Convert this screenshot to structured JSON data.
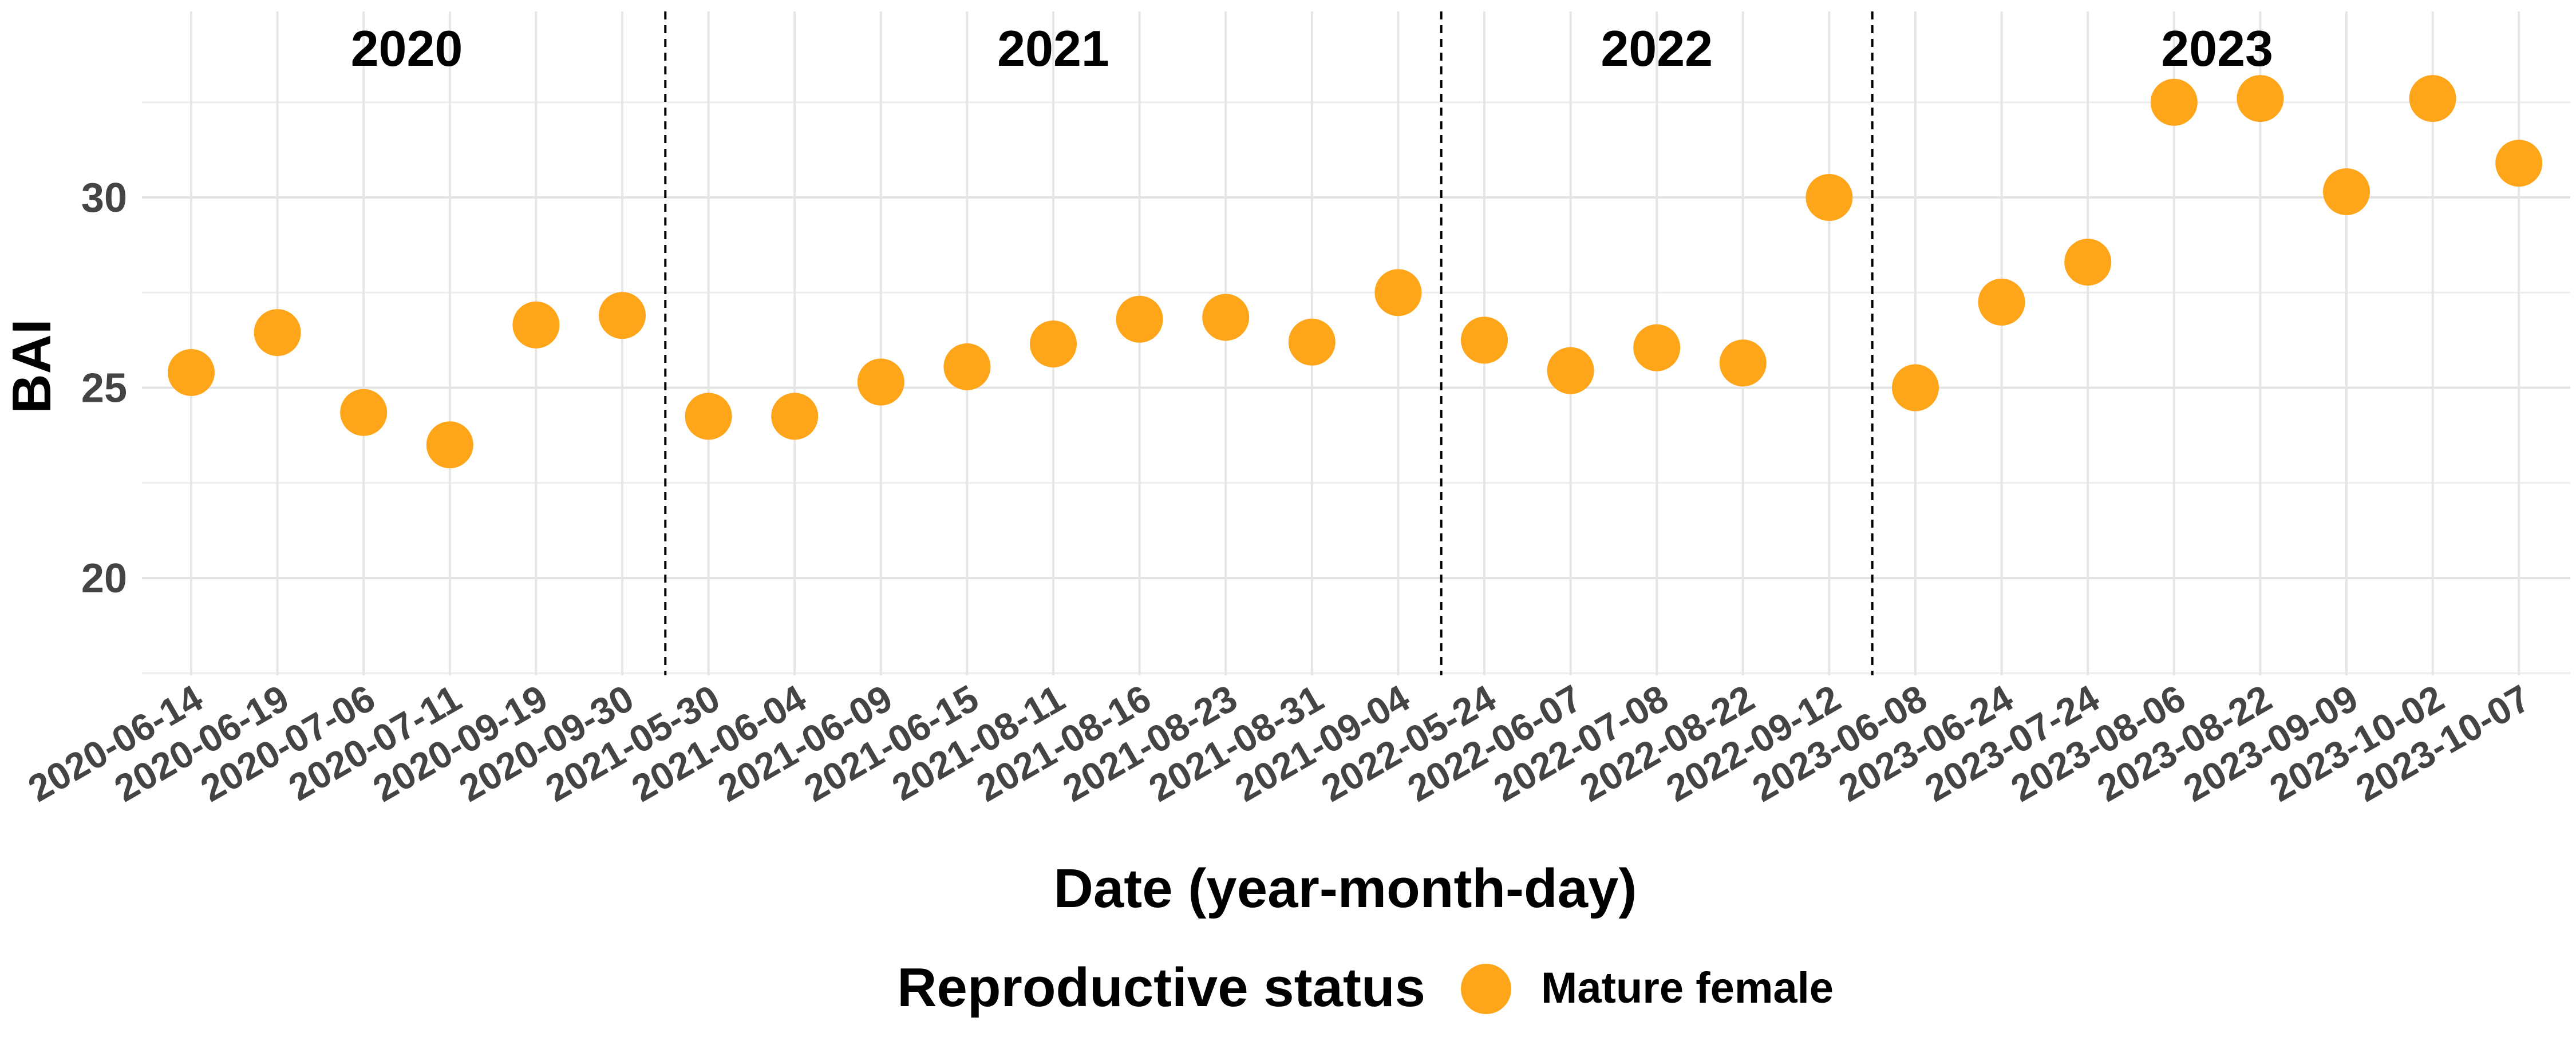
{
  "chart_data": {
    "type": "scatter",
    "xlabel": "Date (year-month-day)",
    "ylabel": "BAI",
    "ylim": [
      17.5,
      34.5
    ],
    "yticks": [
      20,
      25,
      30
    ],
    "grid": true,
    "point_color": "#FFA51A",
    "divider_style": "dashed",
    "legend": {
      "title": "Reproductive status",
      "placement": "bottom",
      "entries": [
        "Mature female"
      ]
    },
    "year_labels": [
      "2020",
      "2021",
      "2022",
      "2023"
    ],
    "year_groups": [
      {
        "label": "2020",
        "count": 6
      },
      {
        "label": "2021",
        "count": 9
      },
      {
        "label": "2022",
        "count": 5
      },
      {
        "label": "2023",
        "count": 8
      }
    ],
    "categories": [
      "2020-06-14",
      "2020-06-19",
      "2020-07-06",
      "2020-07-11",
      "2020-09-19",
      "2020-09-30",
      "2021-05-30",
      "2021-06-04",
      "2021-06-09",
      "2021-06-15",
      "2021-08-11",
      "2021-08-16",
      "2021-08-23",
      "2021-08-31",
      "2021-09-04",
      "2022-05-24",
      "2022-06-07",
      "2022-07-08",
      "2022-08-22",
      "2022-09-12",
      "2023-06-08",
      "2023-06-24",
      "2023-07-24",
      "2023-08-06",
      "2023-08-22",
      "2023-09-09",
      "2023-10-02",
      "2023-10-07"
    ],
    "series": [
      {
        "name": "Mature female",
        "values": [
          25.4,
          26.45,
          24.35,
          23.5,
          26.65,
          26.9,
          24.25,
          24.25,
          25.15,
          25.55,
          26.15,
          26.8,
          26.85,
          26.2,
          27.5,
          26.25,
          25.45,
          26.05,
          25.65,
          30.0,
          25.0,
          27.25,
          28.3,
          32.5,
          32.6,
          30.15,
          32.6,
          30.9
        ]
      }
    ]
  }
}
